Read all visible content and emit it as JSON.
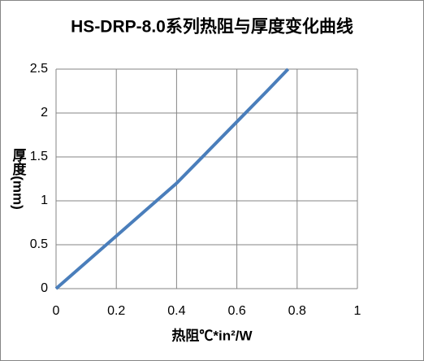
{
  "chart_data": {
    "type": "line",
    "title": "HS-DRP-8.0系列热阻与厚度变化曲线",
    "x_label": "热阻℃*in²/W",
    "y_label": "厚度(mm)",
    "x": [
      0,
      0.1,
      0.2,
      0.3,
      0.4,
      0.5,
      0.6,
      0.7,
      0.77
    ],
    "series": [
      {
        "name": "HS-DRP-8.0",
        "color": "#4a7ebb",
        "values": [
          0,
          0.3,
          0.6,
          0.9,
          1.2,
          1.55,
          1.9,
          2.25,
          2.5
        ]
      }
    ],
    "xlim": [
      0,
      1
    ],
    "xticks": [
      0,
      0.2,
      0.4,
      0.6,
      0.8,
      1
    ],
    "ylim": [
      0,
      2.5
    ],
    "yticks": [
      0,
      0.5,
      1,
      1.5,
      2,
      2.5
    ],
    "grid": true
  }
}
